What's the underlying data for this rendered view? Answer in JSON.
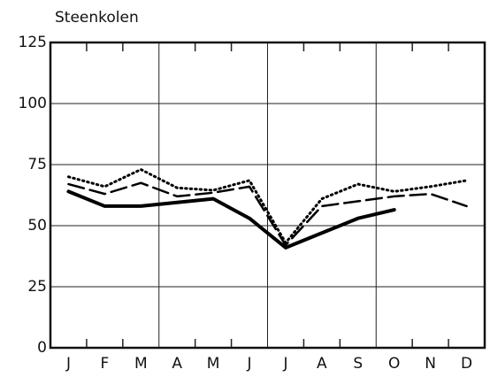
{
  "chart_data": {
    "type": "line",
    "title": "Steenkolen",
    "categories": [
      "J",
      "F",
      "M",
      "A",
      "M",
      "J",
      "J",
      "A",
      "S",
      "O",
      "N",
      "D"
    ],
    "series": [
      {
        "color": "#000000",
        "style": "solid",
        "values": [
          64,
          58,
          58,
          59.5,
          61,
          53,
          41,
          47,
          53,
          56.5,
          null,
          null
        ]
      },
      {
        "color": "#000000",
        "style": "dashed",
        "values": [
          67,
          63,
          67.5,
          62,
          63.5,
          66,
          42,
          58,
          60,
          62,
          63,
          58
        ]
      },
      {
        "color": "#000000",
        "style": "dotted",
        "values": [
          70,
          66,
          73,
          65.5,
          64.5,
          68.5,
          43,
          61,
          67,
          64,
          66,
          68.5
        ]
      }
    ],
    "ylim": [
      0,
      125
    ],
    "yticks": [
      0,
      25,
      50,
      75,
      100,
      125
    ],
    "grid": true
  }
}
